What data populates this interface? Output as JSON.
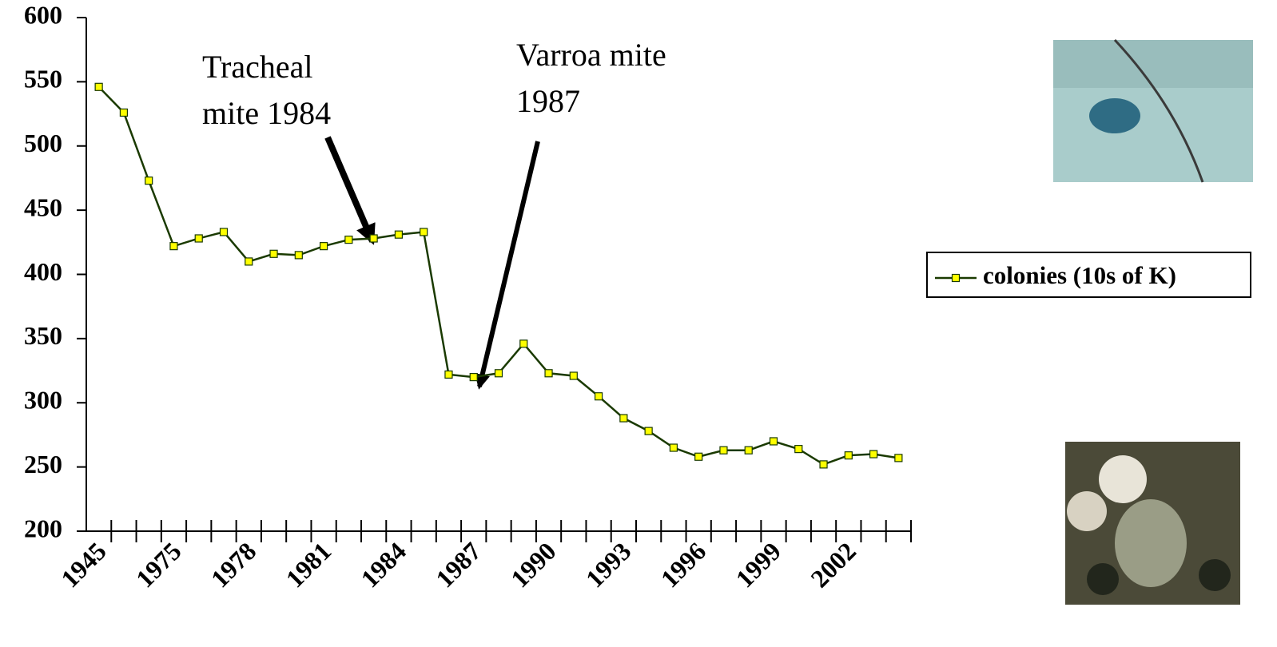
{
  "chart_data": {
    "type": "line",
    "categories": [
      "1945",
      null,
      null,
      "1975",
      null,
      null,
      "1978",
      null,
      null,
      "1981",
      null,
      null,
      "1984",
      null,
      null,
      "1987",
      null,
      null,
      "1990",
      null,
      null,
      "1993",
      null,
      null,
      "1996",
      null,
      null,
      "1999",
      null,
      null,
      "2002",
      null,
      null
    ],
    "series": [
      {
        "name": "colonies (10s of K)",
        "color": "#1a3a00",
        "marker_color": "#ffff00",
        "values": [
          546,
          526,
          473,
          422,
          428,
          433,
          410,
          416,
          415,
          422,
          427,
          428,
          431,
          433,
          322,
          320,
          323,
          346,
          323,
          321,
          305,
          288,
          278,
          265,
          258,
          263,
          263,
          270,
          264,
          252,
          259,
          260,
          257
        ]
      }
    ],
    "ylim": [
      200,
      600
    ],
    "yticks": [
      200,
      250,
      300,
      350,
      400,
      450,
      500,
      550,
      600
    ],
    "grid": false,
    "legend": "right",
    "annotations": [
      {
        "lines": [
          "Tracheal",
          "mite 1984"
        ]
      },
      {
        "lines": [
          "Varroa mite",
          "1987"
        ]
      }
    ]
  }
}
